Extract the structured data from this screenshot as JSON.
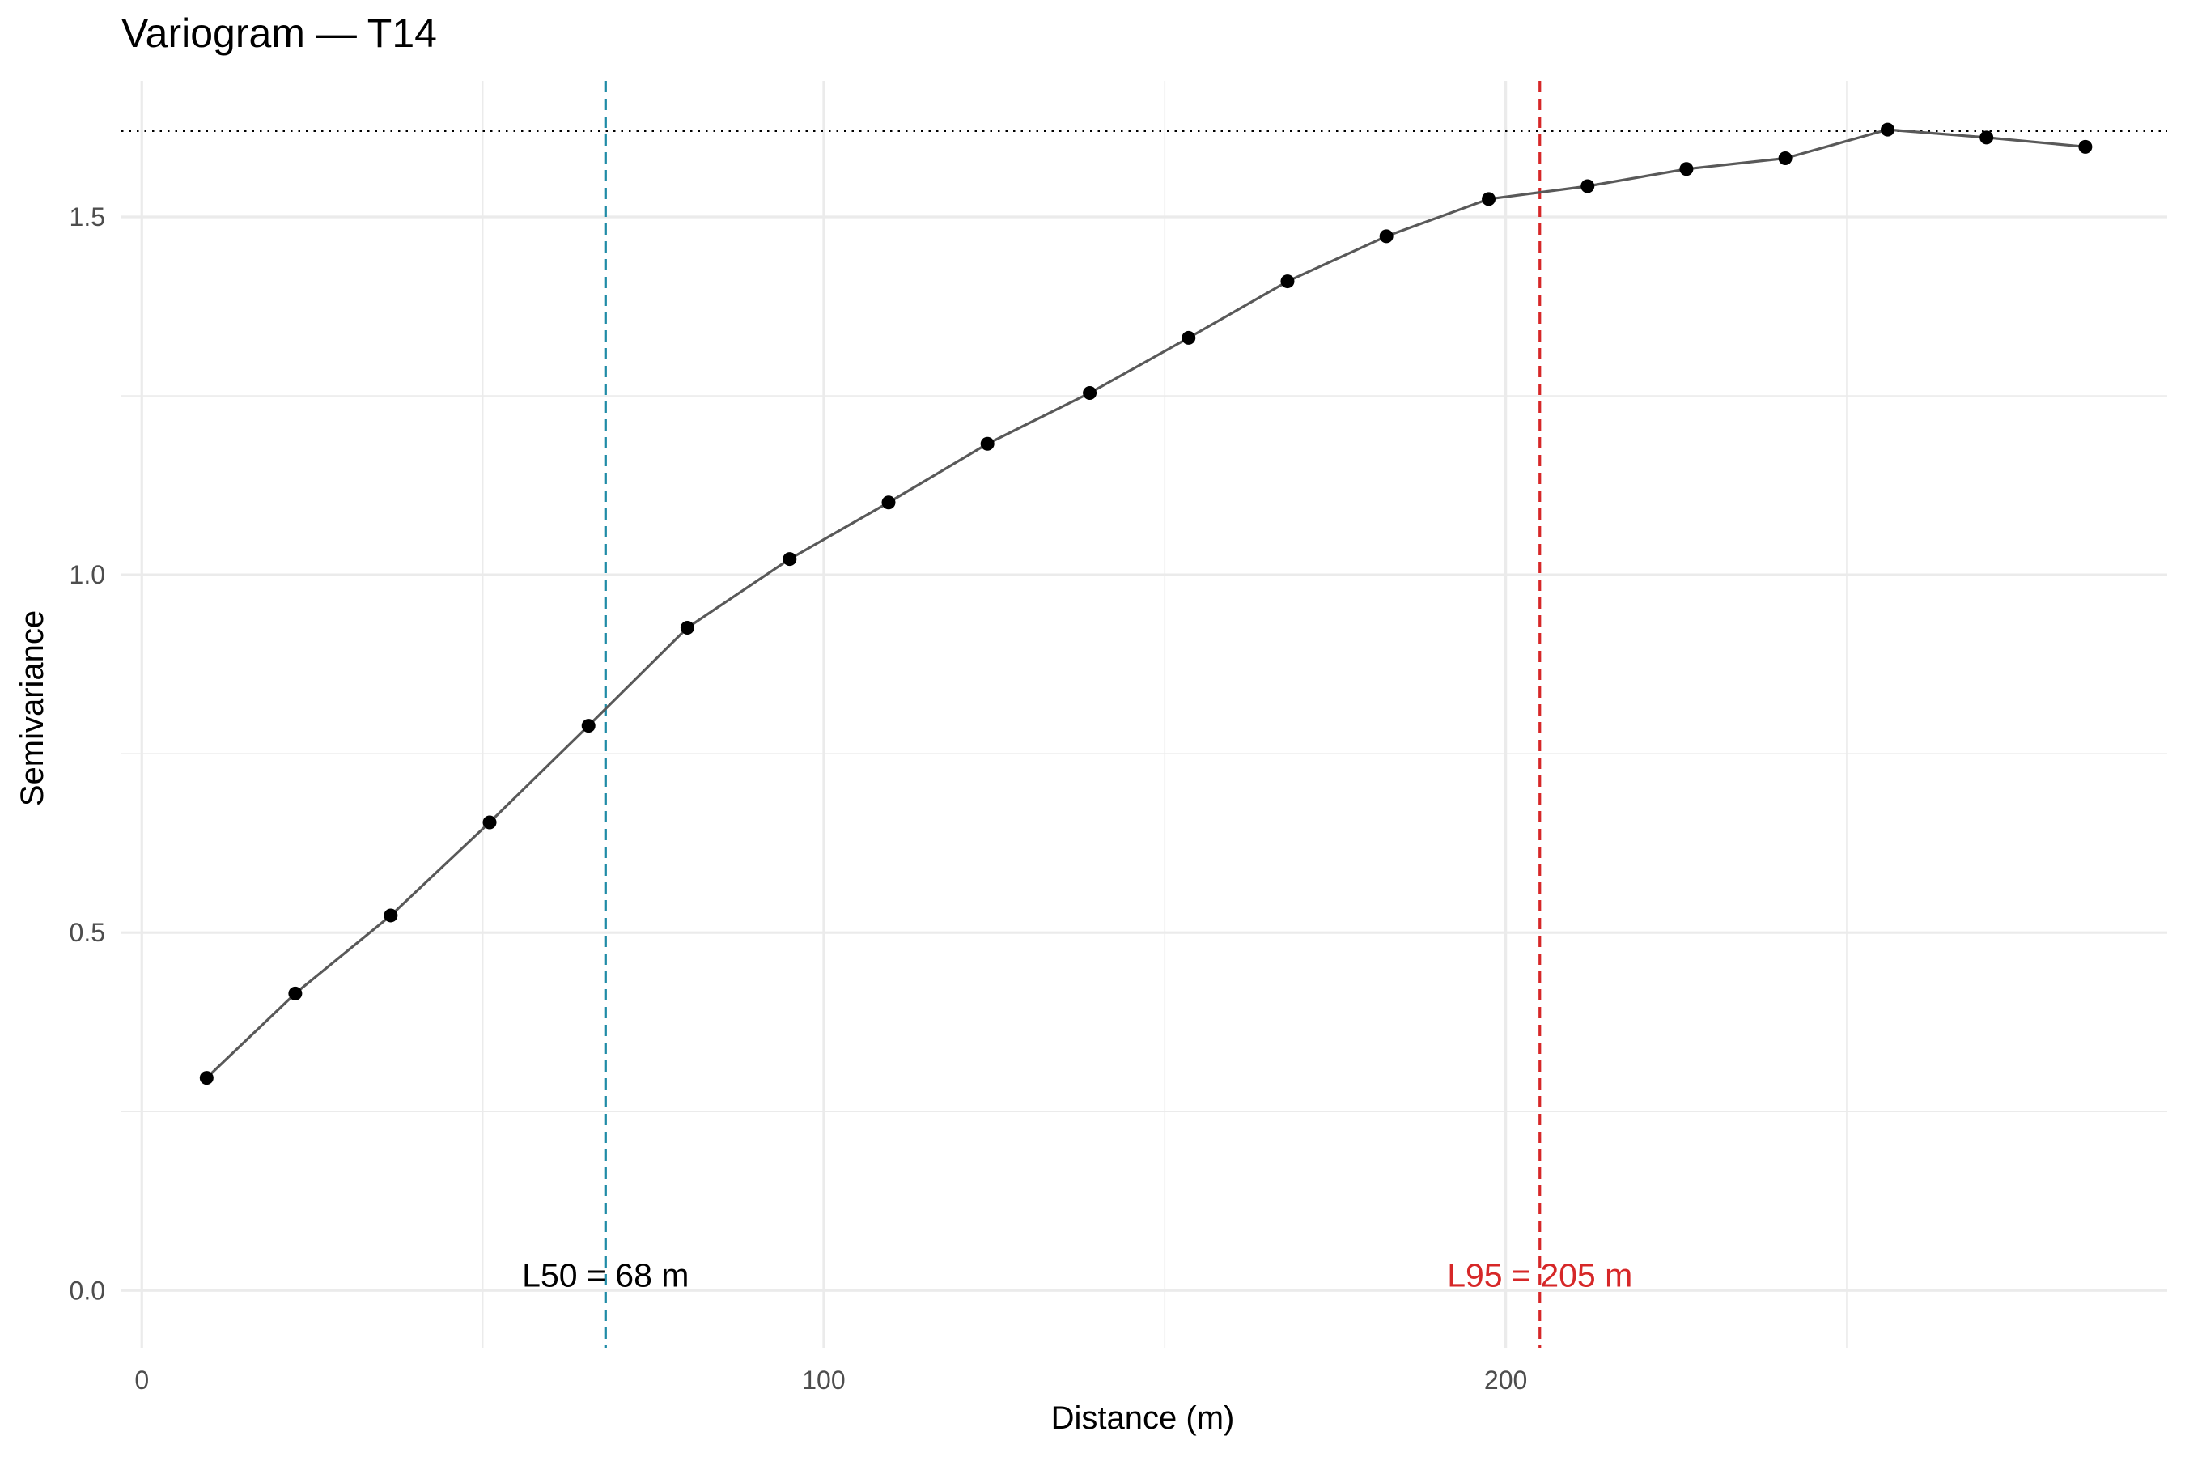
{
  "chart_data": {
    "type": "line",
    "title": "Variogram — T14",
    "xlabel": "Distance (m)",
    "ylabel": "Semivariance",
    "xlim": [
      -3,
      297
    ],
    "ylim": [
      -0.08,
      1.69
    ],
    "x_ticks": [
      0,
      100,
      200
    ],
    "y_ticks": [
      0.0,
      0.5,
      1.0,
      1.5
    ],
    "x_tick_labels": [
      "0",
      "100",
      "200"
    ],
    "y_tick_labels": [
      "0.0",
      "0.5",
      "1.0",
      "1.5"
    ],
    "grid": true,
    "legend": "none",
    "series": [
      {
        "x": [
          9.5,
          22.5,
          36.5,
          51,
          65.5,
          80,
          95,
          109.5,
          124,
          139,
          153.5,
          168,
          182.5,
          197.5,
          212,
          226.5,
          241,
          256,
          270.5,
          285
        ],
        "y": [
          0.297,
          0.415,
          0.524,
          0.654,
          0.789,
          0.926,
          1.022,
          1.101,
          1.183,
          1.254,
          1.331,
          1.41,
          1.473,
          1.525,
          1.543,
          1.567,
          1.582,
          1.622,
          1.611,
          1.598
        ],
        "color": "#595959",
        "marker_color": "#000000"
      }
    ],
    "sill": {
      "y": 1.62,
      "style": "dotted",
      "color": "#000000"
    },
    "reference_lines": [
      {
        "x": 68,
        "label": "L50 = 68 m",
        "line_color": "#1f8ba6",
        "label_color": "#000000",
        "style": "dashed"
      },
      {
        "x": 205,
        "label": "L95 = 205 m",
        "line_color": "#d62728",
        "label_color": "#d62728",
        "style": "dashed"
      }
    ]
  }
}
